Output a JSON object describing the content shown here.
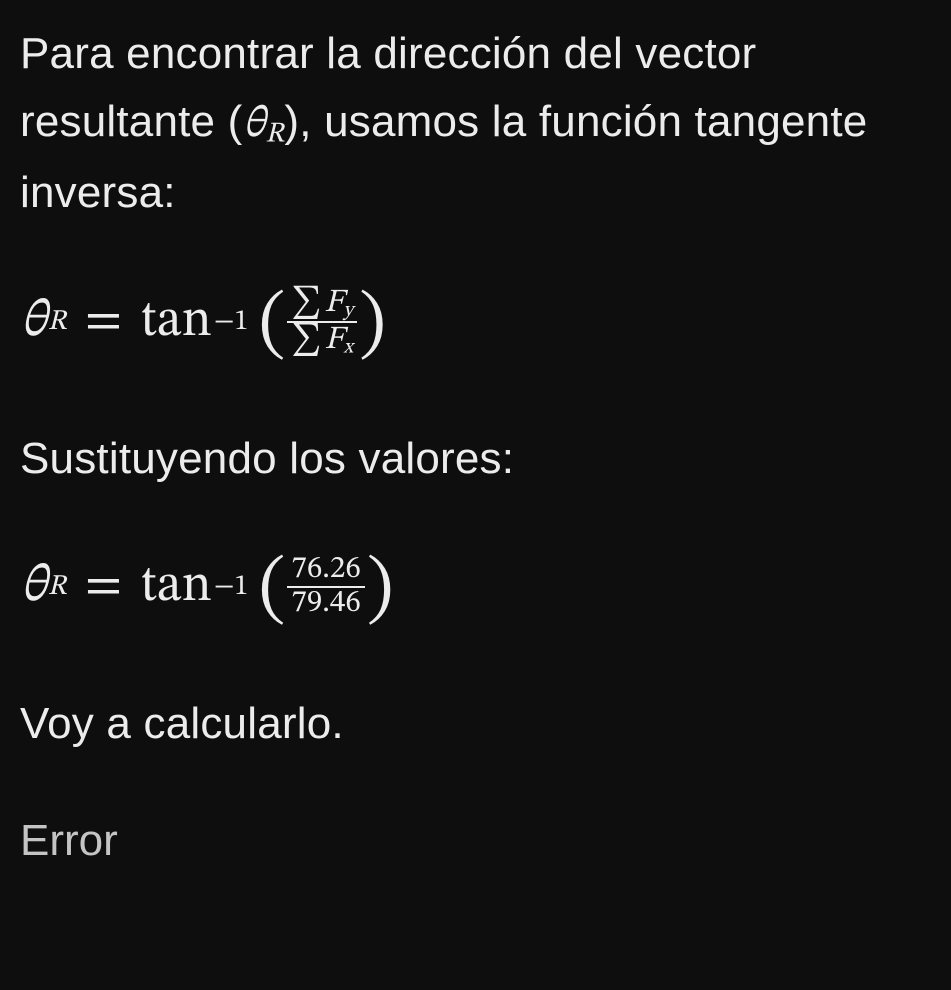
{
  "colors": {
    "background": "#0e0e0e",
    "text_primary": "#ececec",
    "text_muted": "#c4c4c4",
    "rule": "#ececec"
  },
  "typography": {
    "body_family": "-apple-system, Segoe UI, Helvetica Neue, Arial",
    "math_family": "STIX Two Math, Cambria Math, Latin Modern Math, Times New Roman",
    "body_size_pt": 33,
    "math_size_pt": 39,
    "line_height": 1.55
  },
  "para1_pre": "Para encontrar la dirección del vector resultante (",
  "para1_theta": "θ",
  "para1_sub": "R",
  "para1_post": "), usamos la función tangente inversa:",
  "eq1": {
    "lhs_theta": "θ",
    "lhs_sub": "R",
    "eq": "=",
    "fn": "tan",
    "sup": "−1",
    "lparen": "(",
    "rparen": ")",
    "num_sigma": "∑",
    "num_F": "F",
    "num_sub": "y",
    "den_sigma": "∑",
    "den_F": "F",
    "den_sub": "x"
  },
  "para2": "Sustituyendo los valores:",
  "eq2": {
    "lhs_theta": "θ",
    "lhs_sub": "R",
    "eq": "=",
    "fn": "tan",
    "sup": "−1",
    "lparen": "(",
    "rparen": ")",
    "num": "76.26",
    "den": "79.46"
  },
  "para3": "Voy a calcularlo.",
  "error_label": "Error"
}
